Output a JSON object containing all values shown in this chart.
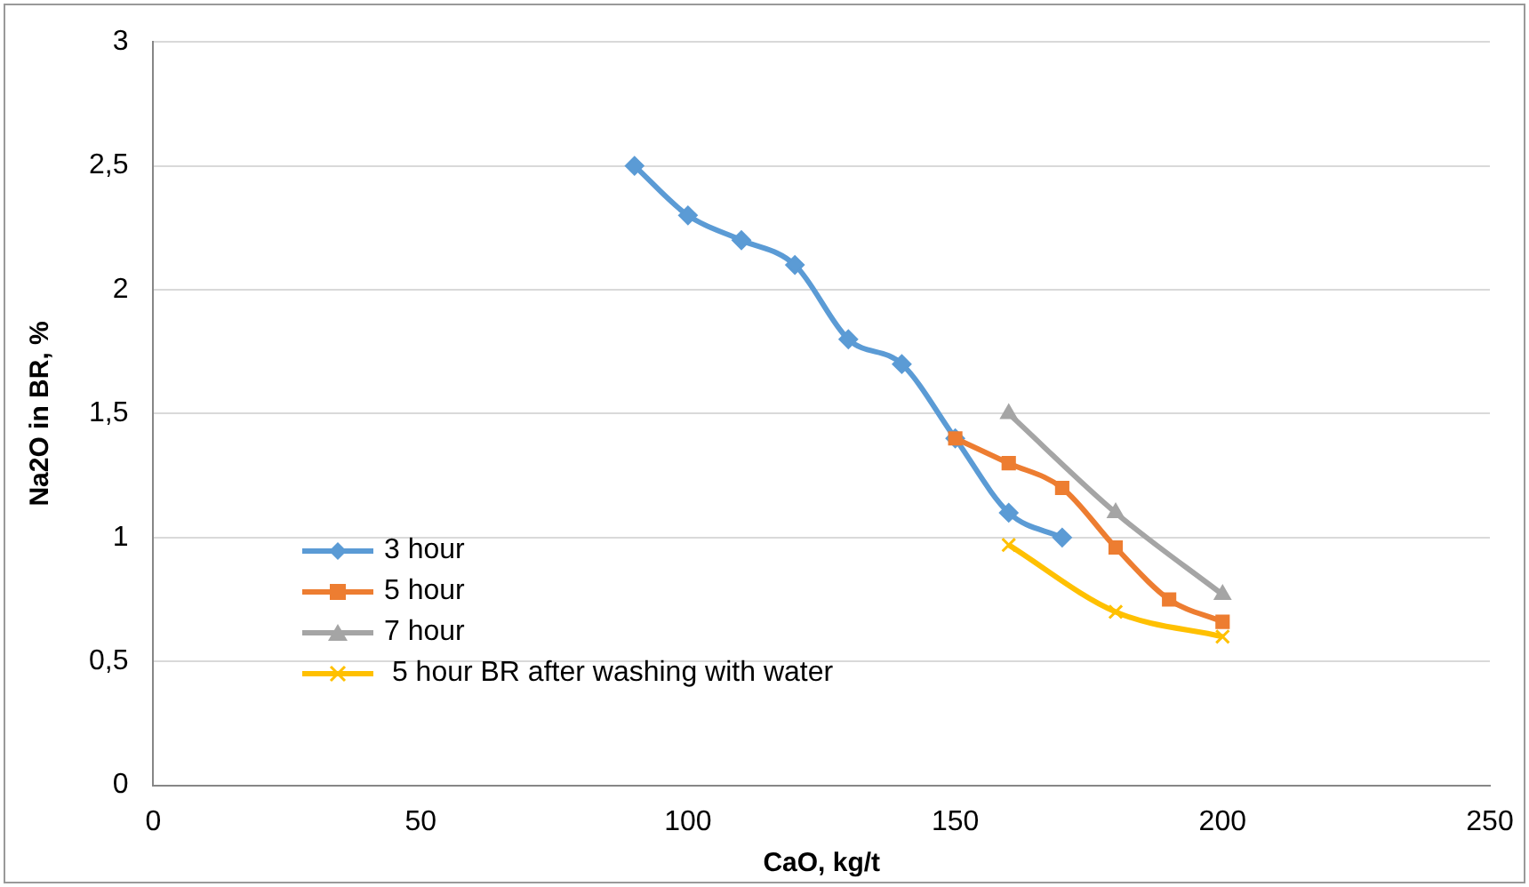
{
  "chart_data": {
    "type": "line",
    "xlabel": "CaO, kg/t",
    "ylabel": "Na2O in BR, %",
    "xlim": [
      0,
      250
    ],
    "xticks": [
      0,
      50,
      100,
      150,
      200,
      250
    ],
    "ylim": [
      0,
      3
    ],
    "yticks": [
      0,
      {
        "value": 0.5,
        "label": "0,5"
      },
      1,
      {
        "value": 1.5,
        "label": "1,5"
      },
      2,
      {
        "value": 2.5,
        "label": "2,5"
      },
      3
    ],
    "grid": "y",
    "legend": "bottom left",
    "series": [
      {
        "name": "3 hour",
        "color": "#5b9bd5",
        "marker": "diamond",
        "x": [
          90,
          100,
          110,
          120,
          130,
          140,
          150,
          160,
          170
        ],
        "values": [
          2.5,
          2.3,
          2.2,
          2.1,
          1.8,
          1.7,
          1.4,
          1.1,
          1.0
        ]
      },
      {
        "name": "5 hour",
        "color": "#ed7d31",
        "marker": "square",
        "x": [
          150,
          160,
          170,
          180,
          190,
          200
        ],
        "values": [
          1.4,
          1.3,
          1.2,
          0.96,
          0.75,
          0.66
        ]
      },
      {
        "name": "7 hour",
        "color": "#a5a5a5",
        "marker": "triangle",
        "x": [
          160,
          180,
          200
        ],
        "values": [
          1.5,
          1.1,
          0.77
        ]
      },
      {
        "name": " 5 hour BR after washing with water",
        "color": "#ffc000",
        "marker": "cross",
        "x": [
          160,
          180,
          200
        ],
        "values": [
          0.97,
          0.7,
          0.6
        ]
      }
    ]
  }
}
